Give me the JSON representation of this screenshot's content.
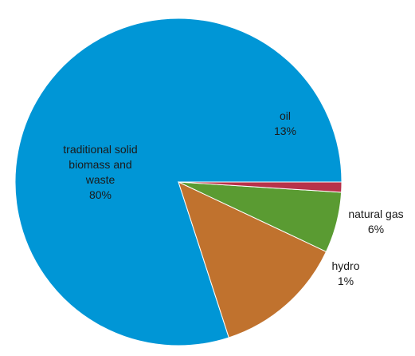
{
  "chart_data": {
    "type": "pie",
    "slices": [
      {
        "label_lines": [
          "traditional solid",
          "biomass and",
          "waste"
        ],
        "percent_label": "80%",
        "value": 80,
        "color": "#0096d6"
      },
      {
        "label_lines": [
          "oil"
        ],
        "percent_label": "13%",
        "value": 13,
        "color": "#c0722e"
      },
      {
        "label_lines": [
          "natural gas"
        ],
        "percent_label": "6%",
        "value": 6,
        "color": "#5a9b32"
      },
      {
        "label_lines": [
          "hydro"
        ],
        "percent_label": "1%",
        "value": 1,
        "color": "#b8324a"
      }
    ],
    "start_angle_deg": 0,
    "direction": "counterclockwise",
    "legend": "none"
  }
}
